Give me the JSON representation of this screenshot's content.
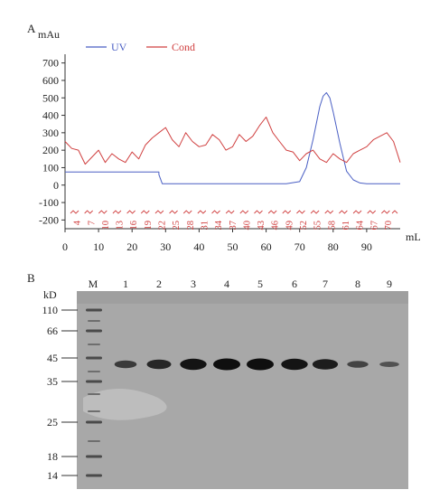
{
  "panel_a": {
    "label": "A",
    "y_unit": "mAu",
    "x_unit": "mL",
    "legend": [
      {
        "name": "UV",
        "color": "#4a5fc4"
      },
      {
        "name": "Cond",
        "color": "#d04040"
      }
    ],
    "fraction_labels": [
      "4",
      "7",
      "10",
      "13",
      "16",
      "19",
      "22",
      "25",
      "28",
      "31",
      "34",
      "37",
      "40",
      "43",
      "46",
      "49",
      "52",
      "55",
      "58",
      "61",
      "64",
      "67",
      "70"
    ],
    "fraction_color": "#d04040"
  },
  "panel_b": {
    "label": "B",
    "y_unit": "kD",
    "lane_labels": [
      "M",
      "1",
      "2",
      "3",
      "4",
      "5",
      "6",
      "7",
      "8",
      "9"
    ],
    "marker_kd": [
      "110",
      "66",
      "45",
      "35",
      "25",
      "18",
      "14"
    ],
    "band_intensity": [
      0.55,
      0.75,
      0.95,
      1.0,
      1.0,
      0.95,
      0.85,
      0.45,
      0.3
    ]
  },
  "chart_data": [
    {
      "type": "line",
      "title": "",
      "xlabel": "mL",
      "ylabel": "mAu",
      "xlim": [
        0,
        100
      ],
      "ylim": [
        -250,
        750
      ],
      "x_ticks": [
        0,
        10,
        20,
        30,
        40,
        50,
        60,
        70,
        80,
        90
      ],
      "y_ticks": [
        -200,
        -100,
        0,
        100,
        200,
        300,
        400,
        500,
        600,
        700
      ],
      "legend_position": "top",
      "grid": false,
      "series": [
        {
          "name": "UV",
          "color": "#4a5fc4",
          "x": [
            0,
            28,
            28,
            29,
            50,
            66,
            70,
            72,
            74,
            76,
            77,
            78,
            79,
            80,
            82,
            84,
            86,
            88,
            90,
            100
          ],
          "y": [
            75,
            75,
            60,
            8,
            8,
            8,
            20,
            100,
            260,
            450,
            510,
            530,
            500,
            420,
            240,
            80,
            30,
            12,
            8,
            8
          ]
        },
        {
          "name": "Cond",
          "color": "#d04040",
          "x": [
            0,
            2,
            4,
            6,
            8,
            10,
            12,
            14,
            16,
            18,
            20,
            22,
            24,
            26,
            28,
            30,
            32,
            34,
            36,
            38,
            40,
            42,
            44,
            46,
            48,
            50,
            52,
            54,
            56,
            58,
            60,
            62,
            64,
            66,
            68,
            70,
            72,
            74,
            76,
            78,
            80,
            82,
            84,
            86,
            88,
            90,
            92,
            94,
            96,
            98,
            100
          ],
          "y": [
            250,
            210,
            200,
            120,
            160,
            200,
            130,
            180,
            150,
            130,
            190,
            150,
            230,
            270,
            300,
            330,
            260,
            220,
            300,
            250,
            220,
            230,
            290,
            260,
            200,
            220,
            290,
            250,
            280,
            340,
            390,
            300,
            250,
            200,
            190,
            140,
            180,
            200,
            150,
            130,
            180,
            150,
            130,
            180,
            200,
            220,
            260,
            280,
            300,
            250,
            130
          ]
        }
      ]
    }
  ]
}
